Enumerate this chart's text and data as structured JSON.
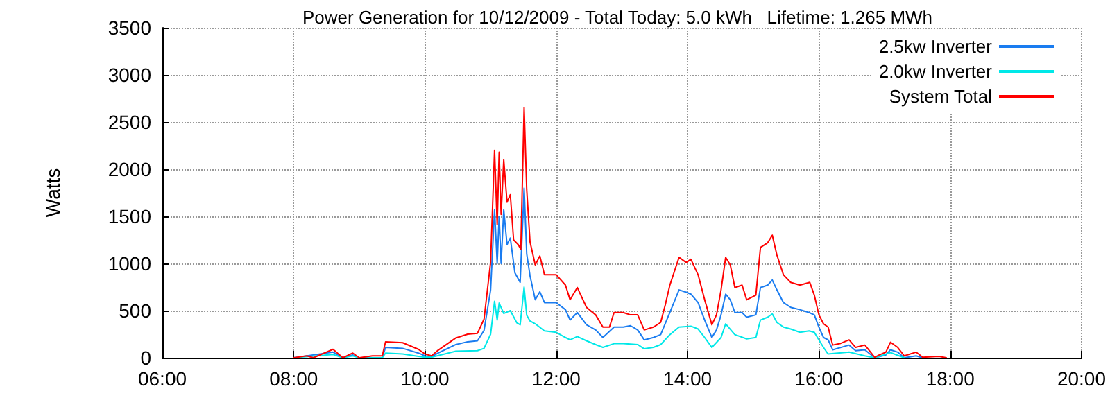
{
  "chart_data": {
    "type": "line",
    "title": "Power Generation for 10/12/2009 - Total Today: 5.0 kWh   Lifetime: 1.265 MWh",
    "ylabel": "Watts",
    "xlim": [
      6,
      20
    ],
    "xticks": [
      {
        "value": 6,
        "label": "06:00"
      },
      {
        "value": 8,
        "label": "08:00"
      },
      {
        "value": 10,
        "label": "10:00"
      },
      {
        "value": 12,
        "label": "12:00"
      },
      {
        "value": 14,
        "label": "14:00"
      },
      {
        "value": 16,
        "label": "16:00"
      },
      {
        "value": 18,
        "label": "18:00"
      },
      {
        "value": 20,
        "label": "20:00"
      }
    ],
    "ylim": [
      0,
      3500
    ],
    "yticks": [
      0,
      500,
      1000,
      1500,
      2000,
      2500,
      3000,
      3500
    ],
    "grid": true,
    "legend": "top right",
    "marker": "none",
    "line_style": "solid",
    "series": [
      {
        "name": "2.5kw Inverter",
        "color": "#1a7cf0",
        "x": [
          8.0,
          8.6,
          8.75,
          8.9,
          9.0,
          9.35,
          9.4,
          9.66,
          9.9,
          10.0,
          10.1,
          10.2,
          10.47,
          10.65,
          10.8,
          10.9,
          11.0,
          11.06,
          11.1,
          11.13,
          11.16,
          11.2,
          11.25,
          11.3,
          11.37,
          11.45,
          11.51,
          11.55,
          11.6,
          11.68,
          11.75,
          11.82,
          12.0,
          12.14,
          12.21,
          12.32,
          12.46,
          12.6,
          12.71,
          12.88,
          13.02,
          13.13,
          13.24,
          13.34,
          13.48,
          13.59,
          13.73,
          13.87,
          13.98,
          14.05,
          14.16,
          14.26,
          14.37,
          14.44,
          14.51,
          14.58,
          14.65,
          14.72,
          14.83,
          14.9,
          15.04,
          15.11,
          15.22,
          15.29,
          15.36,
          15.46,
          15.57,
          15.71,
          15.85,
          15.93,
          16.0,
          16.07,
          16.14,
          16.21,
          16.46,
          16.56,
          16.7,
          16.85,
          17.02,
          17.09,
          17.2,
          17.3,
          17.48,
          17.58
        ],
        "values": [
          0,
          60,
          0,
          30,
          0,
          0,
          110,
          100,
          50,
          20,
          10,
          50,
          140,
          170,
          180,
          290,
          720,
          1570,
          1000,
          1500,
          1000,
          1570,
          1200,
          1270,
          900,
          800,
          1800,
          1100,
          870,
          615,
          700,
          585,
          585,
          510,
          400,
          480,
          350,
          295,
          215,
          325,
          325,
          340,
          295,
          190,
          215,
          245,
          480,
          720,
          695,
          675,
          585,
          400,
          215,
          295,
          455,
          675,
          615,
          480,
          480,
          430,
          455,
          745,
          770,
          825,
          720,
          585,
          535,
          510,
          480,
          455,
          325,
          215,
          190,
          85,
          135,
          75,
          85,
          0,
          30,
          85,
          60,
          0,
          20,
          0
        ]
      },
      {
        "name": "2.0kw Inverter",
        "color": "#00e8e8",
        "x": [
          8.0,
          8.6,
          8.75,
          8.9,
          9.0,
          9.35,
          9.4,
          9.66,
          9.9,
          10.0,
          10.1,
          10.47,
          10.8,
          10.9,
          11.0,
          11.06,
          11.1,
          11.13,
          11.2,
          11.3,
          11.4,
          11.45,
          11.51,
          11.55,
          11.6,
          11.68,
          11.82,
          12.0,
          12.14,
          12.21,
          12.32,
          12.46,
          12.6,
          12.71,
          12.88,
          13.02,
          13.24,
          13.34,
          13.48,
          13.59,
          13.73,
          13.87,
          14.05,
          14.16,
          14.26,
          14.37,
          14.51,
          14.58,
          14.72,
          14.9,
          15.04,
          15.11,
          15.22,
          15.29,
          15.36,
          15.46,
          15.57,
          15.71,
          15.85,
          15.93,
          16.0,
          16.07,
          16.14,
          16.46,
          16.7,
          16.85,
          17.09,
          17.3
        ],
        "values": [
          0,
          35,
          0,
          20,
          0,
          0,
          50,
          40,
          15,
          5,
          5,
          70,
          75,
          100,
          250,
          600,
          400,
          580,
          470,
          500,
          370,
          350,
          750,
          450,
          390,
          360,
          285,
          270,
          215,
          190,
          225,
          180,
          140,
          110,
          150,
          150,
          140,
          95,
          110,
          140,
          245,
          325,
          335,
          305,
          215,
          110,
          215,
          360,
          245,
          200,
          215,
          400,
          430,
          465,
          375,
          325,
          305,
          270,
          285,
          270,
          190,
          110,
          40,
          60,
          20,
          0,
          55,
          0
        ]
      },
      {
        "name": "System Total",
        "color": "#ff0000",
        "x": [
          8.0,
          8.2,
          8.3,
          8.6,
          8.75,
          8.9,
          9.0,
          9.2,
          9.35,
          9.4,
          9.66,
          9.9,
          10.0,
          10.1,
          10.2,
          10.47,
          10.65,
          10.8,
          10.9,
          11.0,
          11.06,
          11.1,
          11.13,
          11.16,
          11.2,
          11.25,
          11.3,
          11.35,
          11.42,
          11.46,
          11.51,
          11.55,
          11.6,
          11.68,
          11.75,
          11.82,
          12.0,
          12.14,
          12.21,
          12.32,
          12.46,
          12.6,
          12.71,
          12.81,
          12.88,
          13.02,
          13.13,
          13.24,
          13.34,
          13.48,
          13.59,
          13.66,
          13.73,
          13.87,
          13.98,
          14.05,
          14.16,
          14.26,
          14.37,
          14.44,
          14.51,
          14.58,
          14.65,
          14.72,
          14.83,
          14.9,
          15.04,
          15.11,
          15.22,
          15.29,
          15.36,
          15.46,
          15.57,
          15.71,
          15.86,
          15.93,
          16.0,
          16.07,
          16.14,
          16.21,
          16.32,
          16.46,
          16.56,
          16.7,
          16.85,
          16.92,
          17.02,
          17.09,
          17.2,
          17.3,
          17.48,
          17.58,
          17.83,
          17.94
        ],
        "values": [
          0,
          20,
          0,
          90,
          0,
          50,
          0,
          20,
          20,
          170,
          160,
          90,
          40,
          20,
          80,
          210,
          250,
          260,
          410,
          1015,
          2200,
          1410,
          2180,
          1520,
          2100,
          1650,
          1730,
          1250,
          1200,
          1150,
          2655,
          1780,
          1230,
          985,
          1080,
          880,
          880,
          770,
          615,
          745,
          535,
          455,
          325,
          325,
          480,
          480,
          455,
          455,
          295,
          325,
          375,
          560,
          770,
          1065,
          1010,
          1045,
          880,
          615,
          350,
          455,
          720,
          1065,
          985,
          745,
          770,
          615,
          665,
          1170,
          1220,
          1300,
          1090,
          880,
          800,
          770,
          800,
          665,
          455,
          360,
          325,
          135,
          150,
          190,
          110,
          135,
          5,
          30,
          60,
          165,
          110,
          20,
          60,
          5,
          15,
          0
        ]
      }
    ]
  }
}
